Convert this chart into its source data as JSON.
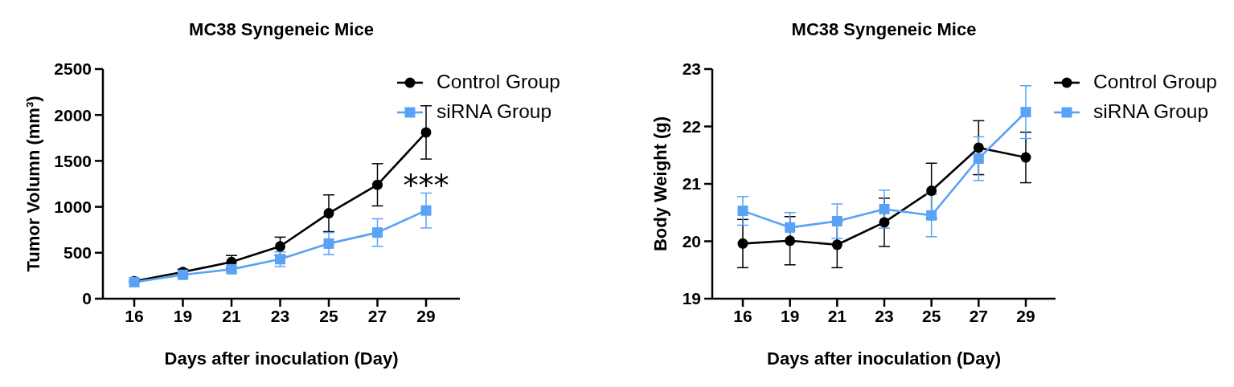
{
  "chart_data": [
    {
      "type": "line",
      "title": "MC38 Syngeneic Mice",
      "xlabel": "Days after inoculation (Day)",
      "ylabel": "Tumor Volumn (mm³)",
      "categories": [
        "16",
        "19",
        "21",
        "23",
        "25",
        "27",
        "29"
      ],
      "series": [
        {
          "name": "Control Group",
          "color": "#000000",
          "marker": "circle",
          "values": [
            190,
            290,
            400,
            570,
            930,
            1240,
            1810
          ],
          "errors": [
            null,
            30,
            70,
            100,
            200,
            230,
            290
          ]
        },
        {
          "name": "siRNA Group",
          "color": "#5aa2f5",
          "marker": "square",
          "values": [
            180,
            260,
            320,
            430,
            600,
            720,
            960
          ],
          "errors": [
            null,
            30,
            30,
            80,
            120,
            150,
            190
          ]
        }
      ],
      "ylim": [
        0,
        2500
      ],
      "yticks": [
        0,
        500,
        1000,
        1500,
        2000,
        2500
      ],
      "legend": "top right",
      "line_style": "solid",
      "annotations": [
        "***"
      ]
    },
    {
      "type": "line",
      "title": "MC38 Syngeneic Mice",
      "xlabel": "Days after inoculation (Day)",
      "ylabel": "Body Weight (g)",
      "categories": [
        "16",
        "19",
        "21",
        "23",
        "25",
        "27",
        "29"
      ],
      "series": [
        {
          "name": "Control Group",
          "color": "#000000",
          "marker": "circle",
          "values": [
            19.96,
            20.01,
            19.94,
            20.33,
            20.88,
            21.63,
            21.46
          ],
          "errors": [
            0.42,
            0.42,
            0.4,
            0.42,
            0.48,
            0.47,
            0.44
          ]
        },
        {
          "name": "siRNA Group",
          "color": "#5aa2f5",
          "marker": "square",
          "values": [
            20.53,
            20.24,
            20.35,
            20.56,
            20.45,
            21.44,
            22.25
          ],
          "errors": [
            0.25,
            0.26,
            0.3,
            0.33,
            0.37,
            0.38,
            0.46
          ]
        }
      ],
      "ylim": [
        19,
        23
      ],
      "yticks": [
        19,
        20,
        21,
        22,
        23
      ],
      "legend": "top right",
      "line_style": "solid"
    }
  ]
}
